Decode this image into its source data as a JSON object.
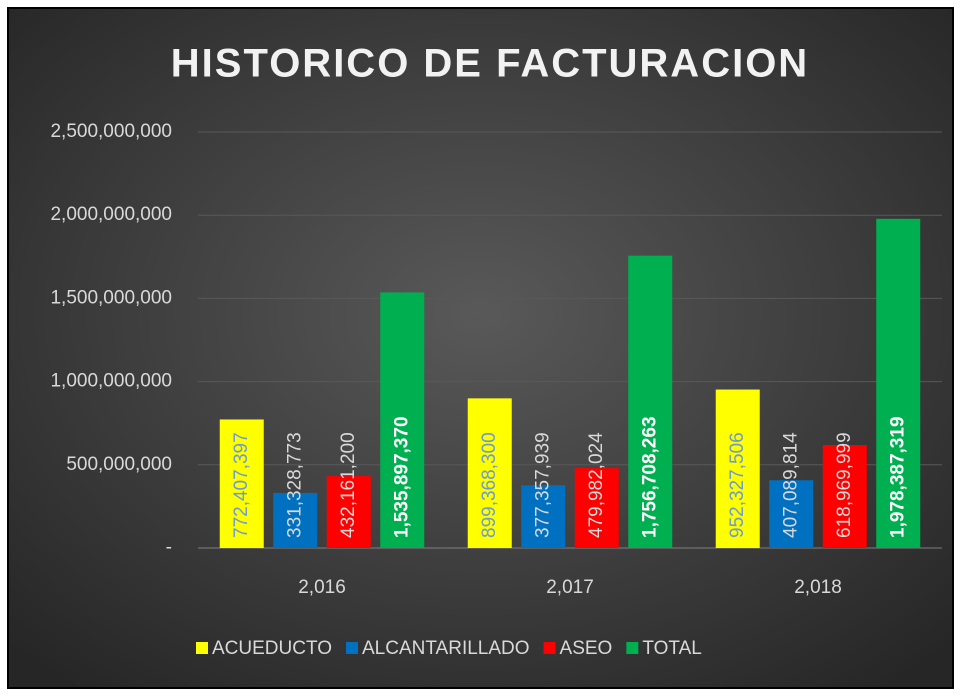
{
  "chart_data": {
    "type": "bar",
    "title": "HISTORICO DE FACTURACION",
    "categories": [
      "2,016",
      "2,017",
      "2,018"
    ],
    "series": [
      {
        "name": "ACUEDUCTO",
        "color": "#ffff00",
        "values": [
          772407397,
          899368300,
          952327506
        ],
        "value_labels": [
          "772,407,397",
          "899,368,300",
          "952,327,506"
        ]
      },
      {
        "name": "ALCANTARILLADO",
        "color": "#0070c0",
        "values": [
          331328773,
          377357939,
          407089814
        ],
        "value_labels": [
          "331,328,773",
          "377,357,939",
          "407,089,814"
        ]
      },
      {
        "name": "ASEO",
        "color": "#ff0000",
        "values": [
          432161200,
          479982024,
          618969999
        ],
        "value_labels": [
          "432,161,200",
          "479,982,024",
          "618,969,999"
        ]
      },
      {
        "name": "TOTAL",
        "color": "#00b050",
        "values": [
          1535897370,
          1756708263,
          1978387319
        ],
        "value_labels": [
          "1,535,897,370",
          "1,756,708,263",
          "1,978,387,319"
        ]
      }
    ],
    "ylim": [
      0,
      2500000000
    ],
    "yticks": [
      {
        "value": 0,
        "label": "-"
      },
      {
        "value": 500000000,
        "label": "500,000,000"
      },
      {
        "value": 1000000000,
        "label": "1,000,000,000"
      },
      {
        "value": 1500000000,
        "label": "1,500,000,000"
      },
      {
        "value": 2000000000,
        "label": "2,000,000,000"
      },
      {
        "value": 2500000000,
        "label": "2,500,000,000"
      }
    ],
    "grid": true,
    "legend": "bottom"
  }
}
